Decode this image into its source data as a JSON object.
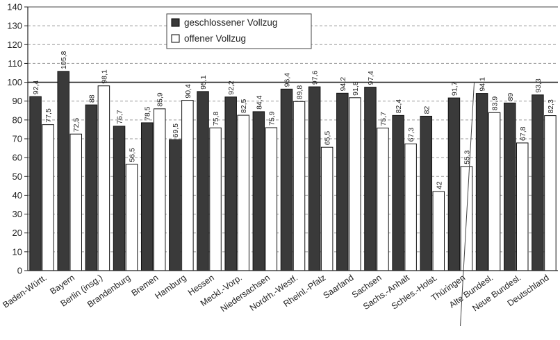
{
  "chart_data": {
    "type": "bar",
    "categories": [
      "Baden-Württ.",
      "Bayern",
      "Berlin (insg.)",
      "Brandenburg",
      "Bremen",
      "Hamburg",
      "Hessen",
      "Meckl.-Vorp.",
      "Niedersachsen",
      "Nordrh.-Westf.",
      "Rheinl.-Pfalz",
      "Saarland",
      "Sachsen",
      "Sachs.-Anhalt",
      "Schles.-Holst.",
      "Thüringen",
      "Alte Bundesl.",
      "Neue Bundesl.",
      "Deutschland"
    ],
    "series": [
      {
        "name": "geschlossener Vollzug",
        "values": [
          92.4,
          105.8,
          88,
          76.7,
          78.5,
          69.5,
          95.1,
          92.2,
          84.4,
          96.4,
          97.6,
          94.2,
          97.4,
          82.4,
          82,
          91.7,
          94.1,
          89,
          93.3
        ],
        "labels": [
          "92,4",
          "105,8",
          "88",
          "76,7",
          "78,5",
          "69,5",
          "95,1",
          "92,2",
          "84,4",
          "96,4",
          "97,6",
          "94,2",
          "97,4",
          "82,4",
          "82",
          "91,7",
          "94,1",
          "89",
          "93,3"
        ],
        "color": "#3a3a3a"
      },
      {
        "name": "offener Vollzug",
        "values": [
          77.5,
          72.5,
          98.1,
          56.5,
          85.9,
          90.4,
          75.8,
          82.5,
          75.9,
          89.8,
          65.5,
          91.8,
          75.7,
          67.3,
          42,
          55.3,
          83.9,
          67.8,
          82.3
        ],
        "labels": [
          "77,5",
          "72,5",
          "98,1",
          "56,5",
          "85,9",
          "90,4",
          "75,8",
          "82,5",
          "75,9",
          "89,8",
          "65,5",
          "91,8",
          "75,7",
          "67,3",
          "42",
          "55,3",
          "83,9",
          "67,8",
          "82,3"
        ],
        "color": "#ffffff"
      }
    ],
    "ylim": [
      0,
      140
    ],
    "yticks": [
      "0",
      "10",
      "20",
      "30",
      "40",
      "50",
      "60",
      "70",
      "80",
      "90",
      "100",
      "110",
      "120",
      "130",
      "140"
    ],
    "reference_line": 100,
    "grid": "horizontal dashed",
    "legend_position": "top-center",
    "title": "",
    "xlabel": "",
    "ylabel": ""
  }
}
